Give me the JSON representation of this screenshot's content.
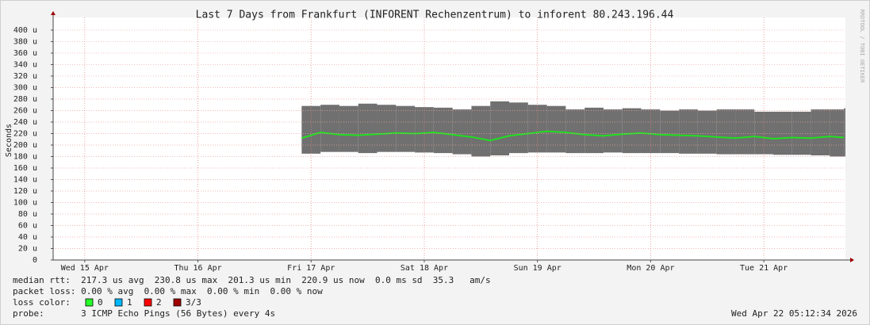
{
  "chart_data": {
    "type": "smokeping",
    "title": "Last 7 Days from Frankfurt (INFORENT Rechenzentrum) to inforent 80.243.196.44",
    "y_label": "Seconds",
    "watermark": "RRDTOOL / TOBI OETIKER",
    "xlim": [
      5.3,
      173.3
    ],
    "xticks": [
      {
        "value": 12,
        "label": "Wed 15 Apr"
      },
      {
        "value": 36,
        "label": "Thu 16 Apr"
      },
      {
        "value": 60,
        "label": "Fri 17 Apr"
      },
      {
        "value": 84,
        "label": "Sat 18 Apr"
      },
      {
        "value": 108,
        "label": "Sun 19 Apr"
      },
      {
        "value": 132,
        "label": "Mon 20 Apr"
      },
      {
        "value": 156,
        "label": "Tue 21 Apr"
      }
    ],
    "ylim": [
      0,
      422
    ],
    "yticks": [
      0,
      {
        "value": 20,
        "label": "20 u"
      },
      {
        "value": 40,
        "label": "40 u"
      },
      {
        "value": 60,
        "label": "60 u"
      },
      {
        "value": 80,
        "label": "80 u"
      },
      {
        "value": 100,
        "label": "100 u"
      },
      {
        "value": 120,
        "label": "120 u"
      },
      {
        "value": 140,
        "label": "140 u"
      },
      {
        "value": 160,
        "label": "160 u"
      },
      {
        "value": 180,
        "label": "180 u"
      },
      {
        "value": 200,
        "label": "200 u"
      },
      {
        "value": 220,
        "label": "220 u"
      },
      {
        "value": 240,
        "label": "240 u"
      },
      {
        "value": 260,
        "label": "260 u"
      },
      {
        "value": 280,
        "label": "280 u"
      },
      {
        "value": 300,
        "label": "300 u"
      },
      {
        "value": 320,
        "label": "320 u"
      },
      {
        "value": 340,
        "label": "340 u"
      },
      {
        "value": 360,
        "label": "360 u"
      },
      {
        "value": 380,
        "label": "380 u"
      },
      {
        "value": 400,
        "label": "400 u"
      }
    ],
    "grid": true,
    "x": [
      58,
      62,
      66,
      70,
      74,
      78,
      82,
      86,
      90,
      94,
      98,
      102,
      106,
      110,
      114,
      118,
      122,
      126,
      130,
      134,
      138,
      142,
      146,
      150,
      154,
      158,
      162,
      166,
      170,
      173
    ],
    "series": [
      {
        "color": "#20e020",
        "values": [
          212,
          222,
          218,
          217,
          219,
          221,
          220,
          222,
          218,
          214,
          208,
          216,
          220,
          224,
          222,
          218,
          216,
          219,
          221,
          218,
          217,
          216,
          214,
          212,
          215,
          211,
          213,
          212,
          215,
          213
        ]
      },
      {
        "color": "#707070",
        "values": [
          268,
          270,
          268,
          272,
          270,
          268,
          266,
          265,
          262,
          268,
          276,
          274,
          270,
          268,
          262,
          265,
          262,
          264,
          262,
          260,
          262,
          260,
          262,
          262,
          258,
          258,
          258,
          262,
          262,
          264
        ]
      },
      {
        "color": "#707070",
        "values": [
          185,
          188,
          188,
          186,
          188,
          188,
          187,
          186,
          184,
          180,
          182,
          186,
          187,
          187,
          186,
          186,
          187,
          186,
          186,
          186,
          185,
          185,
          184,
          184,
          184,
          183,
          183,
          182,
          180,
          180
        ]
      }
    ]
  },
  "footer": {
    "median_rtt": "median rtt:  217.3 us avg  230.8 us max  201.3 us min  220.9 us now  0.0 ms sd  35.3   am/s",
    "packet_loss": "packet loss: 0.00 % avg  0.00 % max  0.00 % min  0.00 % now",
    "loss_color_label": "loss color:",
    "loss_colors": [
      {
        "label": "0",
        "color": "#26ff26"
      },
      {
        "label": "1",
        "color": "#00b8ff"
      },
      {
        "label": "2",
        "color": "#ff0000"
      },
      {
        "label": "3/3",
        "color": "#a10000"
      }
    ],
    "probe": "probe:       3 ICMP Echo Pings (56 Bytes) every 4s",
    "timestamp": "Wed Apr 22 05:12:34 2026"
  }
}
